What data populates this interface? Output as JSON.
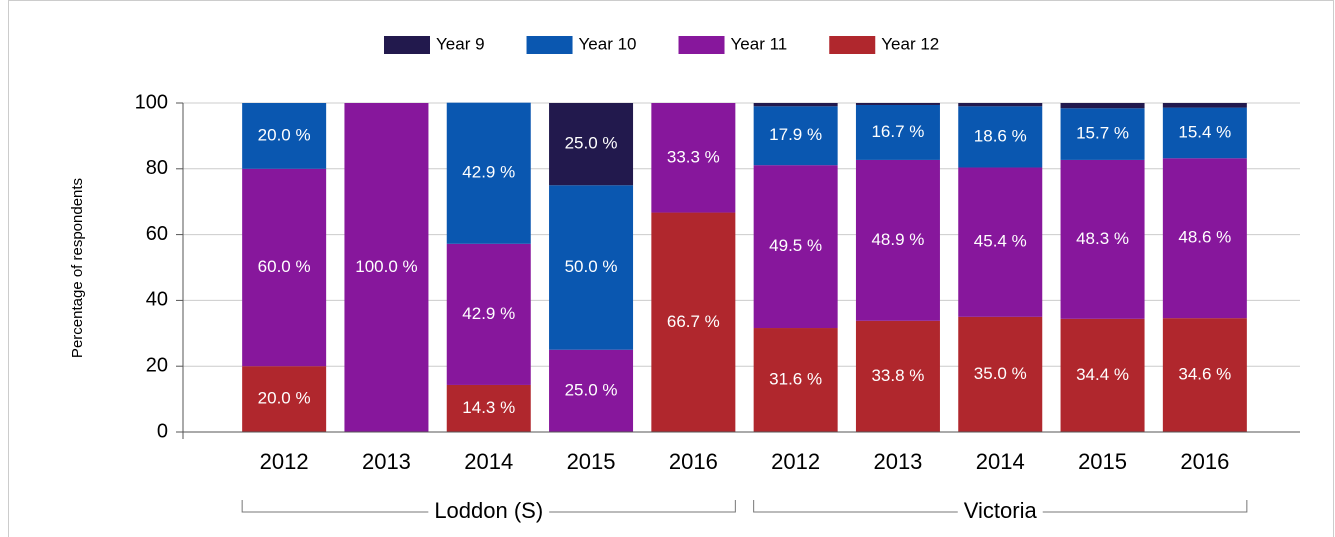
{
  "chart_data": {
    "type": "stacked_bar",
    "y_label": "Percentage of respondents",
    "groups": [
      {
        "name": "Loddon (S)",
        "categories": [
          "2012",
          "2013",
          "2014",
          "2015",
          "2016"
        ]
      },
      {
        "name": "Victoria",
        "categories": [
          "2012",
          "2013",
          "2014",
          "2015",
          "2016"
        ]
      }
    ],
    "series": [
      {
        "name": "Year 9",
        "color": "#22194d",
        "values": [
          0,
          0,
          0,
          25.0,
          0,
          1.0,
          0.6,
          1.0,
          1.6,
          1.4
        ],
        "value_labels": [
          null,
          null,
          null,
          "25.0 %",
          null,
          null,
          null,
          null,
          null,
          null
        ]
      },
      {
        "name": "Year 10",
        "color": "#0a57b0",
        "values": [
          20.0,
          0,
          42.9,
          50.0,
          0,
          17.9,
          16.7,
          18.6,
          15.7,
          15.4
        ],
        "value_labels": [
          "20.0 %",
          null,
          "42.9 %",
          "50.0 %",
          null,
          "17.9 %",
          "16.7 %",
          "18.6 %",
          "15.7 %",
          "15.4 %"
        ]
      },
      {
        "name": "Year 11",
        "color": "#87179c",
        "values": [
          60.0,
          100.0,
          42.9,
          25.0,
          33.3,
          49.5,
          48.9,
          45.4,
          48.3,
          48.6
        ],
        "value_labels": [
          "60.0 %",
          "100.0 %",
          "42.9 %",
          "25.0 %",
          "33.3 %",
          "49.5 %",
          "48.9 %",
          "45.4 %",
          "48.3 %",
          "48.6 %"
        ]
      },
      {
        "name": "Year 12",
        "color": "#b0272d",
        "values": [
          20.0,
          0,
          14.3,
          0,
          66.7,
          31.6,
          33.8,
          35.0,
          34.4,
          34.6
        ],
        "value_labels": [
          "20.0 %",
          null,
          "14.3 %",
          null,
          "66.7 %",
          "31.6 %",
          "33.8 %",
          "35.0 %",
          "34.4 %",
          "34.6 %"
        ]
      }
    ],
    "ylim": [
      0,
      100
    ],
    "yticks": [
      0,
      20,
      40,
      60,
      80,
      100
    ],
    "grid": true,
    "legend": "top"
  }
}
